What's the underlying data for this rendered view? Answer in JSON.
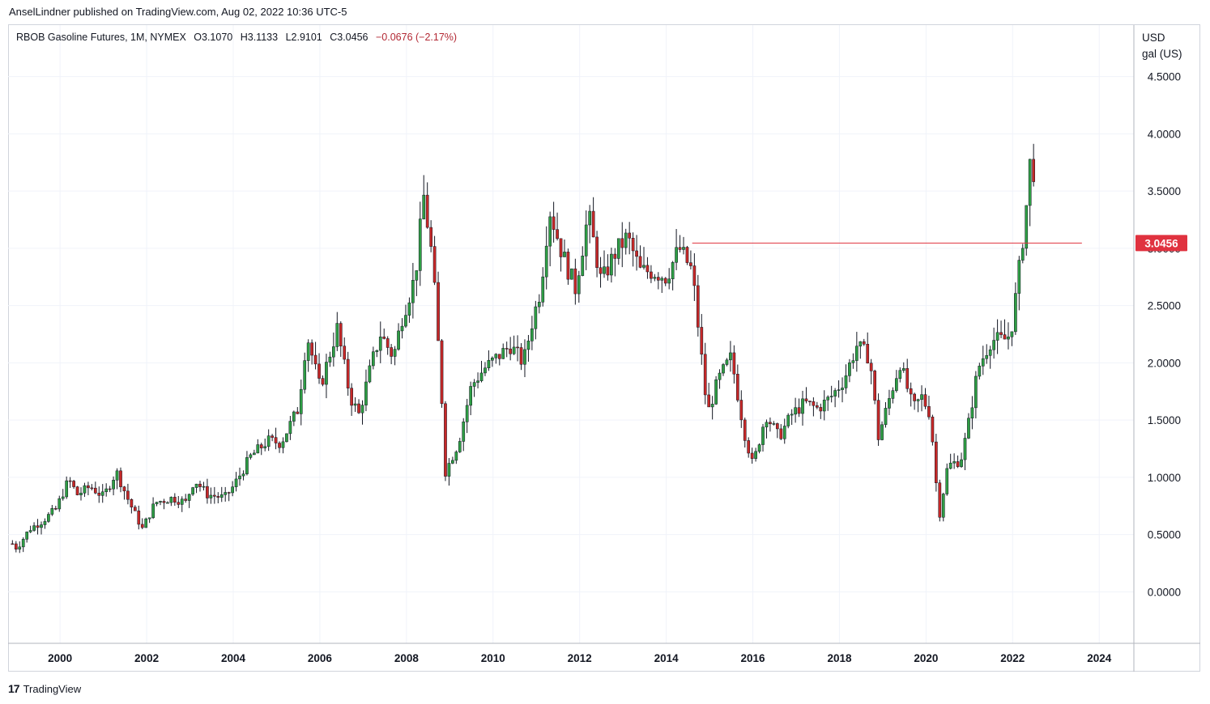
{
  "publisher_line": "AnselLindner published on TradingView.com, Aug 02, 2022 10:36 UTC-5",
  "legend": {
    "symbol": "RBOB Gasoline Futures, 1M, NYMEX",
    "open": "O3.1070",
    "high": "H3.1133",
    "low": "L2.9101",
    "close": "C3.0456",
    "change": "−0.0676 (−2.17%)"
  },
  "unit_line1": "USD",
  "unit_line2": "gal (US)",
  "brand": "TradingView",
  "colors": {
    "up": "#26a69a",
    "up_body": "#2e9e44",
    "down": "#c62828",
    "price_line": "#e0323f",
    "grid": "#f0f3fa",
    "axis_border": "#b2b5be"
  },
  "chart_data": {
    "type": "candlestick",
    "interval": "1M",
    "x_range": [
      1998.8,
      2024.8
    ],
    "y_range": [
      -0.45,
      4.95
    ],
    "y_ticks": [
      "0.0000",
      "0.5000",
      "1.0000",
      "1.5000",
      "2.0000",
      "2.5000",
      "3.0000",
      "3.5000",
      "4.0000",
      "4.5000"
    ],
    "x_ticks": [
      "2000",
      "2002",
      "2004",
      "2006",
      "2008",
      "2010",
      "2012",
      "2014",
      "2016",
      "2018",
      "2020",
      "2022",
      "2024"
    ],
    "last_price_label": "3.0456",
    "last_price_value": 3.0456,
    "horizontal_line": {
      "value": 3.0456,
      "from": 2014.6,
      "to": 2023.6
    },
    "monthly_closes": [
      {
        "t": 1998.9,
        "c": 0.42
      },
      {
        "t": 1999.0,
        "c": 0.38
      },
      {
        "t": 1999.3,
        "c": 0.55
      },
      {
        "t": 1999.6,
        "c": 0.62
      },
      {
        "t": 1999.9,
        "c": 0.72
      },
      {
        "t": 2000.2,
        "c": 0.98
      },
      {
        "t": 2000.4,
        "c": 0.85
      },
      {
        "t": 2000.7,
        "c": 0.92
      },
      {
        "t": 2001.0,
        "c": 0.83
      },
      {
        "t": 2001.3,
        "c": 1.05
      },
      {
        "t": 2001.6,
        "c": 0.78
      },
      {
        "t": 2001.9,
        "c": 0.55
      },
      {
        "t": 2002.2,
        "c": 0.78
      },
      {
        "t": 2002.6,
        "c": 0.82
      },
      {
        "t": 2002.9,
        "c": 0.78
      },
      {
        "t": 2003.1,
        "c": 0.98
      },
      {
        "t": 2003.4,
        "c": 0.85
      },
      {
        "t": 2003.8,
        "c": 0.82
      },
      {
        "t": 2004.0,
        "c": 0.92
      },
      {
        "t": 2004.4,
        "c": 1.18
      },
      {
        "t": 2004.8,
        "c": 1.32
      },
      {
        "t": 2005.1,
        "c": 1.3
      },
      {
        "t": 2005.5,
        "c": 1.6
      },
      {
        "t": 2005.7,
        "c": 2.25
      },
      {
        "t": 2006.0,
        "c": 1.78
      },
      {
        "t": 2006.4,
        "c": 2.3
      },
      {
        "t": 2006.7,
        "c": 1.7
      },
      {
        "t": 2006.9,
        "c": 1.55
      },
      {
        "t": 2007.2,
        "c": 2.0
      },
      {
        "t": 2007.4,
        "c": 2.25
      },
      {
        "t": 2007.7,
        "c": 2.05
      },
      {
        "t": 2007.9,
        "c": 2.4
      },
      {
        "t": 2008.2,
        "c": 2.75
      },
      {
        "t": 2008.4,
        "c": 3.45
      },
      {
        "t": 2008.6,
        "c": 2.9
      },
      {
        "t": 2008.8,
        "c": 1.8
      },
      {
        "t": 2008.9,
        "c": 1.05
      },
      {
        "t": 2009.2,
        "c": 1.3
      },
      {
        "t": 2009.5,
        "c": 1.8
      },
      {
        "t": 2009.8,
        "c": 1.95
      },
      {
        "t": 2010.1,
        "c": 2.05
      },
      {
        "t": 2010.4,
        "c": 2.15
      },
      {
        "t": 2010.7,
        "c": 2.0
      },
      {
        "t": 2010.9,
        "c": 2.35
      },
      {
        "t": 2011.1,
        "c": 2.65
      },
      {
        "t": 2011.3,
        "c": 3.35
      },
      {
        "t": 2011.6,
        "c": 2.95
      },
      {
        "t": 2011.9,
        "c": 2.65
      },
      {
        "t": 2012.2,
        "c": 3.3
      },
      {
        "t": 2012.5,
        "c": 2.7
      },
      {
        "t": 2012.8,
        "c": 2.95
      },
      {
        "t": 2013.1,
        "c": 3.1
      },
      {
        "t": 2013.4,
        "c": 2.8
      },
      {
        "t": 2013.7,
        "c": 2.8
      },
      {
        "t": 2014.0,
        "c": 2.75
      },
      {
        "t": 2014.3,
        "c": 3.0
      },
      {
        "t": 2014.6,
        "c": 2.8
      },
      {
        "t": 2014.8,
        "c": 2.1
      },
      {
        "t": 2014.95,
        "c": 1.55
      },
      {
        "t": 2015.2,
        "c": 1.85
      },
      {
        "t": 2015.5,
        "c": 2.05
      },
      {
        "t": 2015.8,
        "c": 1.4
      },
      {
        "t": 2016.0,
        "c": 1.1
      },
      {
        "t": 2016.3,
        "c": 1.55
      },
      {
        "t": 2016.6,
        "c": 1.35
      },
      {
        "t": 2016.9,
        "c": 1.55
      },
      {
        "t": 2017.2,
        "c": 1.65
      },
      {
        "t": 2017.5,
        "c": 1.6
      },
      {
        "t": 2017.8,
        "c": 1.7
      },
      {
        "t": 2018.1,
        "c": 1.85
      },
      {
        "t": 2018.4,
        "c": 2.15
      },
      {
        "t": 2018.7,
        "c": 2.05
      },
      {
        "t": 2018.9,
        "c": 1.35
      },
      {
        "t": 2019.2,
        "c": 1.75
      },
      {
        "t": 2019.4,
        "c": 2.0
      },
      {
        "t": 2019.7,
        "c": 1.6
      },
      {
        "t": 2019.9,
        "c": 1.7
      },
      {
        "t": 2020.1,
        "c": 1.55
      },
      {
        "t": 2020.3,
        "c": 0.65
      },
      {
        "t": 2020.5,
        "c": 1.1
      },
      {
        "t": 2020.8,
        "c": 1.15
      },
      {
        "t": 2020.95,
        "c": 1.4
      },
      {
        "t": 2021.2,
        "c": 1.95
      },
      {
        "t": 2021.5,
        "c": 2.2
      },
      {
        "t": 2021.8,
        "c": 2.2
      },
      {
        "t": 2021.95,
        "c": 2.25
      },
      {
        "t": 2022.1,
        "c": 2.65
      },
      {
        "t": 2022.3,
        "c": 3.3
      },
      {
        "t": 2022.45,
        "c": 3.95
      },
      {
        "t": 2022.5,
        "c": 3.55
      },
      {
        "t": 2022.55,
        "c": 3.0456
      }
    ]
  }
}
